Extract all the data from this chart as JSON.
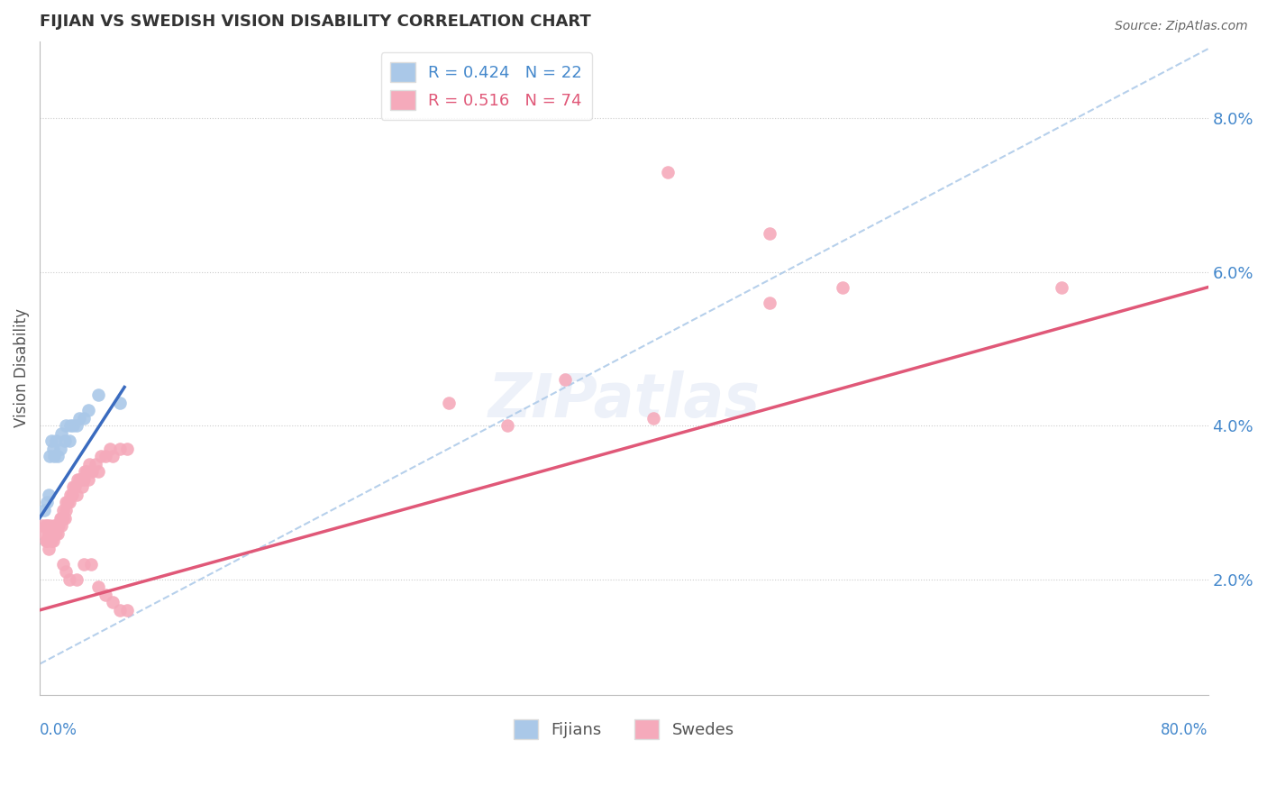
{
  "title": "FIJIAN VS SWEDISH VISION DISABILITY CORRELATION CHART",
  "source": "Source: ZipAtlas.com",
  "ylabel": "Vision Disability",
  "y_ticks": [
    0.02,
    0.04,
    0.06,
    0.08
  ],
  "y_tick_labels": [
    "2.0%",
    "4.0%",
    "6.0%",
    "8.0%"
  ],
  "x_range": [
    0.0,
    0.8
  ],
  "y_range": [
    0.005,
    0.09
  ],
  "fijian_R": 0.424,
  "fijian_N": 22,
  "swedish_R": 0.516,
  "swedish_N": 74,
  "fijian_color": "#aac8e8",
  "swedish_color": "#f5aabb",
  "fijian_line_color": "#3a6bbf",
  "swedish_line_color": "#e05878",
  "ref_line_color": "#aac8e8",
  "fijian_x": [
    0.003,
    0.005,
    0.006,
    0.007,
    0.008,
    0.009,
    0.01,
    0.011,
    0.012,
    0.014,
    0.015,
    0.017,
    0.018,
    0.02,
    0.021,
    0.023,
    0.025,
    0.027,
    0.03,
    0.033,
    0.04,
    0.055
  ],
  "fijian_y": [
    0.029,
    0.03,
    0.031,
    0.036,
    0.038,
    0.037,
    0.036,
    0.038,
    0.036,
    0.037,
    0.039,
    0.038,
    0.04,
    0.038,
    0.04,
    0.04,
    0.04,
    0.041,
    0.041,
    0.042,
    0.044,
    0.043
  ],
  "swedish_x": [
    0.002,
    0.003,
    0.004,
    0.004,
    0.005,
    0.005,
    0.006,
    0.006,
    0.007,
    0.007,
    0.008,
    0.008,
    0.009,
    0.009,
    0.01,
    0.01,
    0.011,
    0.011,
    0.012,
    0.012,
    0.013,
    0.014,
    0.015,
    0.015,
    0.016,
    0.016,
    0.017,
    0.018,
    0.018,
    0.019,
    0.02,
    0.021,
    0.022,
    0.023,
    0.024,
    0.025,
    0.026,
    0.027,
    0.028,
    0.029,
    0.03,
    0.031,
    0.032,
    0.033,
    0.034,
    0.036,
    0.038,
    0.04,
    0.042,
    0.045,
    0.048,
    0.05,
    0.055,
    0.06,
    0.016,
    0.018,
    0.02,
    0.025,
    0.03,
    0.035,
    0.04,
    0.045,
    0.05,
    0.055,
    0.06,
    0.28,
    0.32,
    0.36,
    0.42,
    0.5,
    0.55,
    0.7,
    0.43,
    0.5
  ],
  "swedish_y": [
    0.027,
    0.026,
    0.025,
    0.027,
    0.025,
    0.027,
    0.024,
    0.026,
    0.026,
    0.027,
    0.025,
    0.026,
    0.026,
    0.025,
    0.026,
    0.027,
    0.026,
    0.027,
    0.026,
    0.027,
    0.027,
    0.028,
    0.028,
    0.027,
    0.029,
    0.028,
    0.028,
    0.029,
    0.03,
    0.03,
    0.03,
    0.031,
    0.031,
    0.032,
    0.032,
    0.031,
    0.033,
    0.033,
    0.033,
    0.032,
    0.033,
    0.034,
    0.034,
    0.033,
    0.035,
    0.034,
    0.035,
    0.034,
    0.036,
    0.036,
    0.037,
    0.036,
    0.037,
    0.037,
    0.022,
    0.021,
    0.02,
    0.02,
    0.022,
    0.022,
    0.019,
    0.018,
    0.017,
    0.016,
    0.016,
    0.043,
    0.04,
    0.046,
    0.041,
    0.056,
    0.058,
    0.058,
    0.073,
    0.065
  ],
  "ref_line_x": [
    0.0,
    0.8
  ],
  "ref_line_y": [
    0.009,
    0.089
  ],
  "swedish_trend_x": [
    0.0,
    0.8
  ],
  "swedish_trend_y": [
    0.016,
    0.058
  ],
  "fijian_trend_x": [
    0.0,
    0.058
  ],
  "fijian_trend_y": [
    0.028,
    0.045
  ]
}
